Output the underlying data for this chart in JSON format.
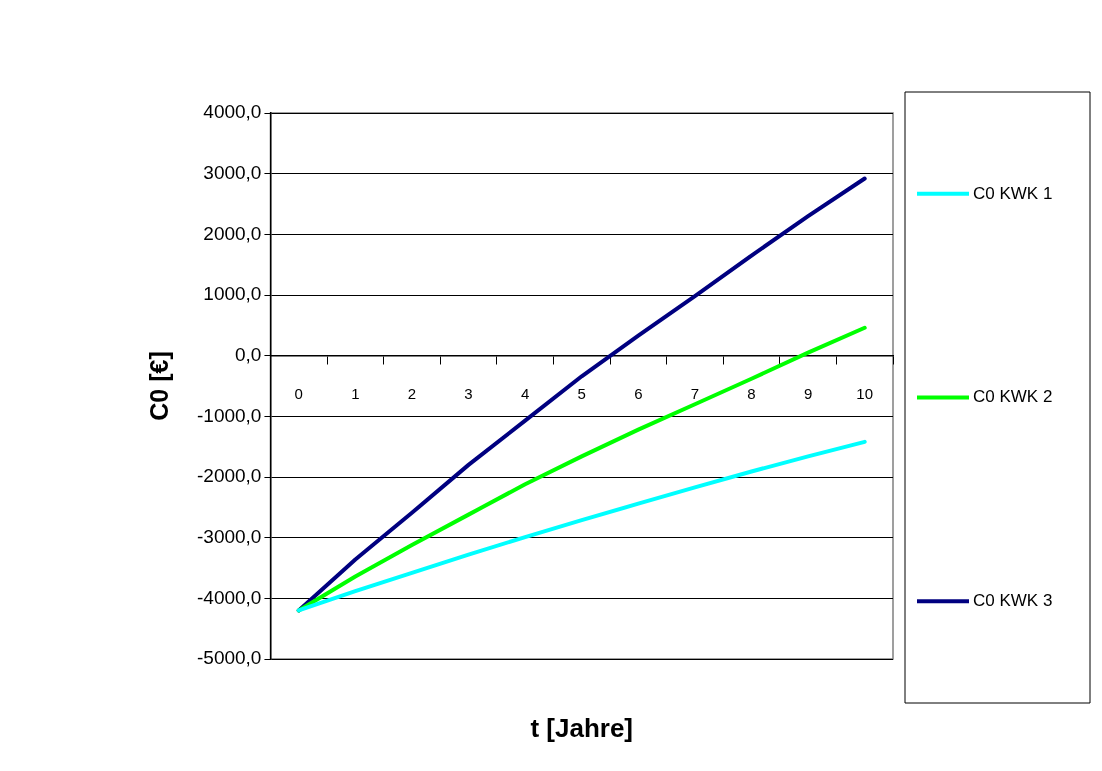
{
  "chart_data": {
    "type": "line",
    "xlabel": "t [Jahre]",
    "ylabel": "C0 [€]",
    "categories": [
      "0",
      "1",
      "2",
      "3",
      "4",
      "5",
      "6",
      "7",
      "8",
      "9",
      "10"
    ],
    "series": [
      {
        "name": "C0 KWK 1",
        "color": "#00ffff",
        "values": [
          -4200,
          -3880,
          -3580,
          -3280,
          -2990,
          -2710,
          -2440,
          -2170,
          -1910,
          -1660,
          -1420
        ]
      },
      {
        "name": "C0 KWK 2",
        "color": "#00ff00",
        "values": [
          -4200,
          -3640,
          -3120,
          -2620,
          -2120,
          -1660,
          -1220,
          -800,
          -380,
          50,
          460
        ]
      },
      {
        "name": "C0 KWK 3",
        "color": "#000080",
        "values": [
          -4200,
          -3360,
          -2590,
          -1800,
          -1070,
          -340,
          330,
          980,
          1650,
          2300,
          2920
        ]
      }
    ],
    "ylim": [
      -5000,
      4000
    ],
    "yticks": [
      {
        "value": -5000,
        "label": "-5000,0"
      },
      {
        "value": -4000,
        "label": "-4000,0"
      },
      {
        "value": -3000,
        "label": "-3000,0"
      },
      {
        "value": -2000,
        "label": "-2000,0"
      },
      {
        "value": -1000,
        "label": "-1000,0"
      },
      {
        "value": 0,
        "label": "0,0"
      },
      {
        "value": 1000,
        "label": "1000,0"
      },
      {
        "value": 2000,
        "label": "2000,0"
      },
      {
        "value": 3000,
        "label": "3000,0"
      },
      {
        "value": 4000,
        "label": "4000,0"
      }
    ],
    "grid": "y",
    "legend": "right",
    "marker": "none",
    "line_style": "solid"
  }
}
